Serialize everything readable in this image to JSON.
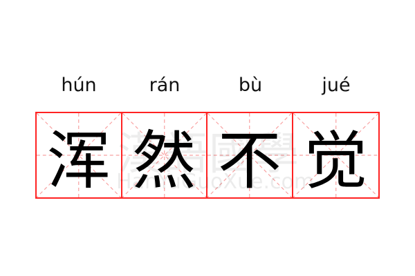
{
  "idiom": [
    {
      "char": "浑",
      "pinyin": "hún"
    },
    {
      "char": "然",
      "pinyin": "rán"
    },
    {
      "char": "不",
      "pinyin": "bù"
    },
    {
      "char": "觉",
      "pinyin": "jué"
    }
  ],
  "watermark": {
    "chinese": "漢語國學",
    "latin": "HanYuGuoXue.com"
  },
  "colors": {
    "grid_border": "#ff2222",
    "guide_lines": "#f8a0a0",
    "text": "#000000"
  }
}
